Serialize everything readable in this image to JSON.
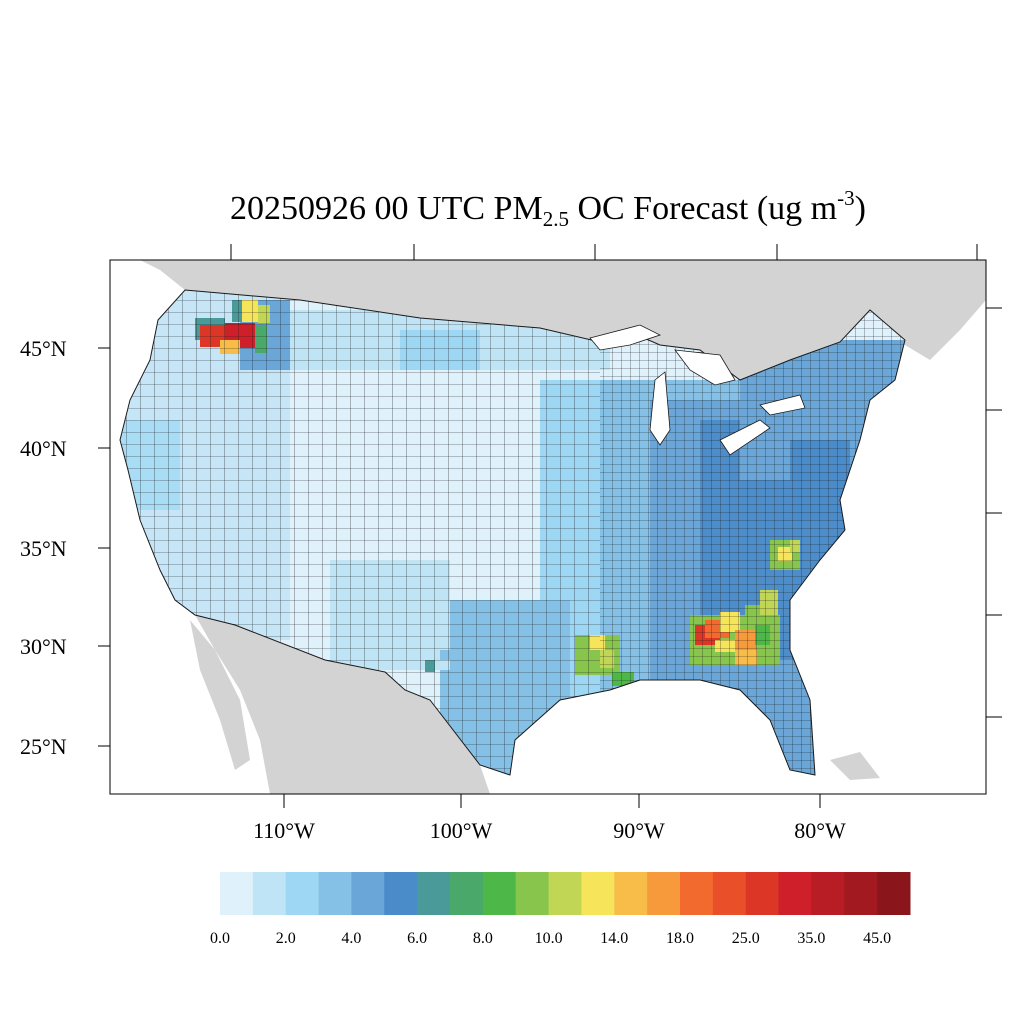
{
  "title": {
    "main": "20250926 00 UTC PM",
    "sub": "2.5",
    "mid": " OC Forecast (ug m",
    "sup": "-3",
    "end": ")"
  },
  "axes": {
    "lat_labels": [
      "45°N",
      "40°N",
      "35°N",
      "30°N",
      "25°N"
    ],
    "lon_labels": [
      "110°W",
      "100°W",
      "90°W",
      "80°W"
    ]
  },
  "colors": {
    "land": "#d3d3d3",
    "water": "#ffffff",
    "county_border": "#1a1a1a"
  },
  "colorbar": {
    "labels": [
      "0.0",
      "2.0",
      "4.0",
      "6.0",
      "8.0",
      "10.0",
      "14.0",
      "18.0",
      "25.0",
      "35.0",
      "45.0"
    ],
    "colors": [
      "#dff1fb",
      "#bfe4f6",
      "#9dd7f4",
      "#85c1e6",
      "#6aa6d8",
      "#4a8bc9",
      "#4a9a9a",
      "#49a86a",
      "#4db848",
      "#88c54c",
      "#c2d655",
      "#f6e45a",
      "#f8bd49",
      "#f69a3b",
      "#f26a2d",
      "#e9502a",
      "#dc3627",
      "#cf1f2a",
      "#b81c24",
      "#a21a1f",
      "#8a161b"
    ]
  },
  "hotspots": [
    {
      "name": "northern-idaho-montana",
      "level": "high"
    },
    {
      "name": "southeast-georgia-alabama",
      "level": "high"
    },
    {
      "name": "north-carolina",
      "level": "moderate"
    },
    {
      "name": "louisiana",
      "level": "moderate"
    }
  ]
}
